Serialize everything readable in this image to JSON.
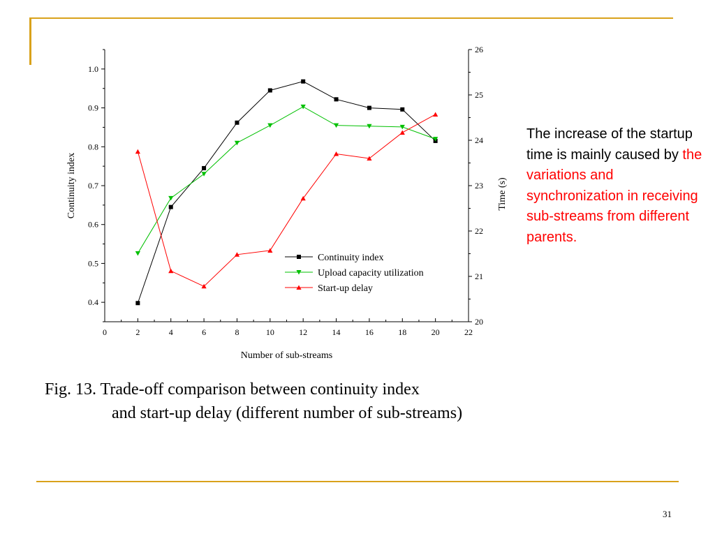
{
  "slide": {
    "body_text_plain": "The increase of the startup time is mainly caused by ",
    "body_text_highlight": "the variations and synchronization in receiving sub-streams from different parents.",
    "caption_line1": "Fig. 13. Trade-off comparison between continuity index",
    "caption_line2": "and start-up delay (different number of sub-streams)",
    "page_number": "31",
    "accent_color": "#d9a21b",
    "highlight_color": "#ff0000"
  },
  "chart_data": {
    "type": "line",
    "xlabel": "Number of sub-streams",
    "ylabel_left": "Continuity index",
    "ylabel_right": "Time (s)",
    "xlim": [
      0,
      22
    ],
    "xticks": [
      0,
      2,
      4,
      6,
      8,
      10,
      12,
      14,
      16,
      18,
      20,
      22
    ],
    "ylim_left": [
      0.35,
      1.05
    ],
    "yticks_left": [
      "0.4",
      "0.5",
      "0.6",
      "0.7",
      "0.8",
      "0.9",
      "1.0"
    ],
    "ylim_right": [
      20,
      26
    ],
    "yticks_right": [
      "20",
      "21",
      "22",
      "23",
      "24",
      "25",
      "26"
    ],
    "x": [
      2,
      4,
      6,
      8,
      10,
      12,
      14,
      16,
      18,
      20
    ],
    "series": [
      {
        "name": "Continuity index",
        "axis": "left",
        "color": "#000000",
        "marker": "square",
        "values": [
          0.398,
          0.645,
          0.745,
          0.862,
          0.945,
          0.968,
          0.922,
          0.9,
          0.896,
          0.815
        ]
      },
      {
        "name": "Upload capacity utilization",
        "axis": "left",
        "color": "#00c000",
        "marker": "triangle-down",
        "values": [
          0.526,
          0.668,
          0.73,
          0.81,
          0.855,
          0.903,
          0.855,
          0.853,
          0.851,
          0.82
        ]
      },
      {
        "name": "Start-up delay",
        "axis": "right",
        "color": "#ff0000",
        "marker": "triangle-up",
        "values": [
          23.75,
          21.12,
          20.78,
          21.48,
          21.57,
          22.72,
          23.7,
          23.6,
          24.17,
          24.57
        ]
      }
    ],
    "legend_position": "bottom-center"
  }
}
